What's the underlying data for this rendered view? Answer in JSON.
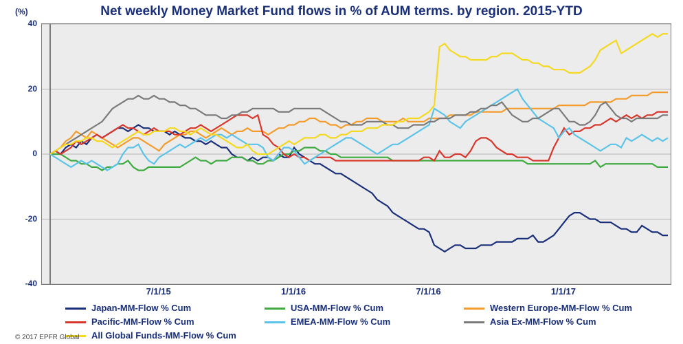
{
  "chart": {
    "type": "line",
    "title": "Net weekly Money Market Fund flows in % of AUM terms. by region. 2015-YTD",
    "ylabel_unit": "(%)",
    "background_color": "#ececec",
    "grid_color": "#b5b5b5",
    "axis_color": "#7a7a7a",
    "label_color": "#1a2f7a",
    "title_fontsize": 19,
    "label_fontsize": 12,
    "tick_fontsize": 12,
    "ylim": [
      -40,
      40
    ],
    "yticks": [
      -40,
      -20,
      0,
      20,
      40
    ],
    "x_tick_positions": [
      21,
      47,
      73,
      99
    ],
    "x_tick_labels": [
      "7/1/15",
      "1/1/16",
      "7/1/16",
      "1/1/17"
    ],
    "n_points": 120,
    "line_width": 2.2,
    "credit": "© 2017 EPFR Global",
    "series": [
      {
        "name": "Japan-MM-Flow % Cum",
        "color": "#1a2f7a",
        "values": [
          0,
          1,
          0,
          2,
          3,
          2,
          4,
          3,
          5,
          6,
          5,
          6,
          7,
          8,
          8,
          7,
          8,
          9,
          8,
          8,
          7,
          7,
          7,
          6,
          7,
          6,
          5,
          5,
          4,
          4,
          3,
          4,
          3,
          2,
          2,
          0,
          -1,
          -1,
          -2,
          -1,
          -2,
          -1,
          -1,
          -2,
          0,
          -1,
          -1,
          2,
          0,
          -1,
          -2,
          -3,
          -3,
          -4,
          -5,
          -6,
          -6,
          -7,
          -8,
          -9,
          -10,
          -11,
          -12,
          -14,
          -15,
          -16,
          -18,
          -19,
          -20,
          -21,
          -22,
          -23,
          -23,
          -24,
          -28,
          -29,
          -30,
          -29,
          -28,
          -28,
          -29,
          -29,
          -29,
          -28,
          -28,
          -28,
          -27,
          -27,
          -27,
          -27,
          -26,
          -26,
          -26,
          -25,
          -27,
          -27,
          -26,
          -25,
          -23,
          -21,
          -19,
          -18,
          -18,
          -19,
          -20,
          -20,
          -21,
          -21,
          -21,
          -22,
          -23,
          -23,
          -24,
          -24,
          -22,
          -23,
          -24,
          -24,
          -25,
          -25
        ]
      },
      {
        "name": "USA-MM-Flow % Cum",
        "color": "#3faa3f",
        "values": [
          0,
          0,
          0,
          -1,
          -2,
          -2,
          -3,
          -3,
          -4,
          -4,
          -5,
          -4,
          -4,
          -3,
          -3,
          -2,
          -4,
          -5,
          -5,
          -4,
          -4,
          -4,
          -4,
          -4,
          -4,
          -4,
          -3,
          -2,
          -1,
          -2,
          -2,
          -3,
          -2,
          -2,
          -2,
          -1,
          -1,
          -1,
          -2,
          -2,
          -3,
          -3,
          -2,
          -2,
          -1,
          0,
          0,
          1,
          1,
          2,
          2,
          2,
          1,
          1,
          0,
          0,
          -1,
          -1,
          -1,
          -1,
          -1,
          -1,
          -1,
          -1,
          -1,
          -1,
          -2,
          -2,
          -2,
          -2,
          -2,
          -2,
          -2,
          -2,
          -2,
          -2,
          -2,
          -2,
          -2,
          -2,
          -2,
          -2,
          -2,
          -2,
          -2,
          -2,
          -2,
          -2,
          -2,
          -2,
          -2,
          -2,
          -3,
          -3,
          -3,
          -3,
          -3,
          -3,
          -3,
          -3,
          -3,
          -3,
          -3,
          -3,
          -3,
          -2,
          -4,
          -3,
          -3,
          -3,
          -3,
          -3,
          -3,
          -3,
          -3,
          -3,
          -3,
          -4,
          -4,
          -4
        ]
      },
      {
        "name": "Western Europe-MM-Flow % Cum",
        "color": "#f39c2c",
        "values": [
          0,
          1,
          2,
          4,
          5,
          7,
          6,
          5,
          7,
          6,
          5,
          4,
          3,
          2,
          3,
          4,
          5,
          5,
          4,
          3,
          2,
          1,
          3,
          4,
          5,
          6,
          6,
          7,
          7,
          6,
          5,
          6,
          7,
          8,
          7,
          6,
          7,
          7,
          8,
          7,
          7,
          7,
          6,
          7,
          8,
          8,
          9,
          9,
          10,
          10,
          11,
          11,
          10,
          10,
          9,
          9,
          8,
          9,
          9,
          10,
          10,
          11,
          11,
          11,
          10,
          10,
          10,
          10,
          11,
          10,
          10,
          10,
          10,
          11,
          11,
          11,
          11,
          12,
          12,
          12,
          12,
          12,
          13,
          13,
          13,
          13,
          13,
          13,
          14,
          14,
          14,
          14,
          14,
          14,
          14,
          14,
          14,
          14,
          15,
          15,
          15,
          15,
          15,
          15,
          16,
          16,
          16,
          16,
          16,
          17,
          17,
          17,
          18,
          18,
          18,
          18,
          19,
          19,
          19,
          19
        ]
      },
      {
        "name": "Pacific-MM-Flow % Cum",
        "color": "#d8362a",
        "values": [
          0,
          1,
          0,
          1,
          2,
          4,
          3,
          4,
          5,
          6,
          5,
          6,
          7,
          8,
          9,
          8,
          8,
          7,
          6,
          7,
          8,
          7,
          7,
          7,
          6,
          6,
          7,
          8,
          8,
          9,
          8,
          7,
          8,
          9,
          10,
          11,
          12,
          12,
          12,
          11,
          12,
          6,
          5,
          3,
          2,
          0,
          -1,
          0,
          -1,
          -1,
          -2,
          -1,
          -1,
          -1,
          -1,
          -2,
          -2,
          -2,
          -2,
          -2,
          -2,
          -2,
          -2,
          -2,
          -2,
          -2,
          -2,
          -2,
          -2,
          -2,
          -2,
          -2,
          -1,
          -1,
          -2,
          1,
          -1,
          -1,
          0,
          0,
          -1,
          1,
          4,
          5,
          5,
          4,
          2,
          1,
          0,
          0,
          -1,
          -1,
          -1,
          -2,
          -2,
          -2,
          -2,
          2,
          5,
          8,
          6,
          7,
          7,
          8,
          8,
          9,
          9,
          10,
          11,
          10,
          11,
          12,
          11,
          12,
          11,
          12,
          12,
          13,
          13,
          13
        ]
      },
      {
        "name": "EMEA-MM-Flow % Cum",
        "color": "#5cc3e8",
        "values": [
          0,
          -1,
          -2,
          -3,
          -4,
          -3,
          -2,
          -3,
          -2,
          -3,
          -4,
          -5,
          -4,
          -3,
          0,
          2,
          2,
          3,
          0,
          -2,
          -3,
          -1,
          0,
          1,
          2,
          3,
          2,
          3,
          4,
          5,
          4,
          5,
          6,
          6,
          5,
          6,
          5,
          4,
          3,
          3,
          3,
          2,
          -1,
          -2,
          0,
          2,
          2,
          1,
          -1,
          -3,
          -2,
          -1,
          0,
          1,
          2,
          3,
          4,
          5,
          5,
          4,
          3,
          2,
          1,
          0,
          1,
          2,
          3,
          3,
          4,
          5,
          6,
          7,
          8,
          9,
          14,
          13,
          12,
          10,
          9,
          8,
          10,
          11,
          12,
          13,
          14,
          15,
          16,
          17,
          18,
          19,
          20,
          17,
          15,
          13,
          11,
          10,
          9,
          8,
          5,
          7,
          8,
          6,
          5,
          4,
          3,
          2,
          1,
          2,
          3,
          3,
          2,
          5,
          4,
          5,
          6,
          5,
          4,
          5,
          4,
          5
        ]
      },
      {
        "name": "Asia Ex-MM-Flow % Cum",
        "color": "#7a7a7a",
        "values": [
          0,
          1,
          2,
          3,
          4,
          5,
          6,
          7,
          8,
          9,
          10,
          12,
          14,
          15,
          16,
          17,
          17,
          18,
          17,
          17,
          18,
          17,
          17,
          16,
          16,
          15,
          15,
          14,
          14,
          13,
          12,
          12,
          12,
          11,
          11,
          12,
          12,
          13,
          13,
          14,
          14,
          14,
          14,
          14,
          13,
          13,
          13,
          14,
          14,
          14,
          14,
          14,
          14,
          13,
          12,
          11,
          10,
          10,
          9,
          9,
          9,
          10,
          10,
          10,
          10,
          9,
          9,
          8,
          8,
          8,
          9,
          9,
          9,
          10,
          10,
          11,
          11,
          11,
          12,
          12,
          12,
          13,
          13,
          14,
          14,
          15,
          15,
          16,
          14,
          12,
          11,
          10,
          10,
          11,
          11,
          12,
          13,
          14,
          14,
          12,
          10,
          10,
          9,
          9,
          10,
          12,
          15,
          16,
          14,
          12,
          11,
          11,
          10,
          11,
          11,
          11,
          11,
          11,
          12,
          12
        ]
      },
      {
        "name": "All Global Funds-MM-Flow % Cum",
        "color": "#f4d91f",
        "values": [
          0,
          1,
          2,
          3,
          3,
          4,
          4,
          5,
          5,
          4,
          4,
          3,
          2,
          3,
          4,
          5,
          6,
          7,
          6,
          6,
          7,
          7,
          7,
          8,
          8,
          7,
          7,
          6,
          7,
          8,
          7,
          6,
          6,
          5,
          4,
          3,
          2,
          2,
          3,
          1,
          0,
          0,
          0,
          1,
          2,
          3,
          4,
          3,
          4,
          5,
          5,
          5,
          6,
          6,
          5,
          5,
          6,
          6,
          7,
          7,
          7,
          8,
          8,
          8,
          9,
          9,
          9,
          10,
          10,
          11,
          11,
          11,
          12,
          13,
          15,
          33,
          34,
          32,
          31,
          30,
          30,
          29,
          29,
          29,
          29,
          30,
          30,
          31,
          31,
          31,
          30,
          29,
          29,
          28,
          28,
          27,
          27,
          26,
          26,
          26,
          25,
          25,
          25,
          26,
          27,
          29,
          32,
          33,
          34,
          35,
          31,
          32,
          33,
          34,
          35,
          36,
          37,
          36,
          37,
          37
        ]
      }
    ]
  }
}
